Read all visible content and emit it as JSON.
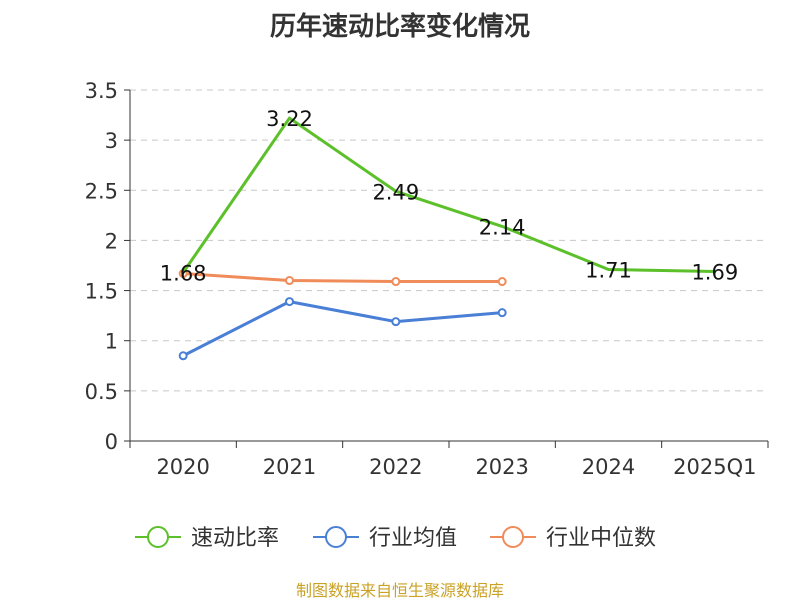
{
  "chart_data": {
    "type": "line",
    "title": "历年速动比率变化情况",
    "categories": [
      "2020",
      "2021",
      "2022",
      "2023",
      "2024",
      "2025Q1"
    ],
    "ylim": [
      0,
      3.5
    ],
    "yticks": [
      "0",
      "0.5",
      "1",
      "1.5",
      "2",
      "2.5",
      "3",
      "3.5"
    ],
    "grid": true,
    "legend_position": "bottom",
    "series": [
      {
        "name": "速动比率",
        "color": "#5cc02a",
        "values": [
          1.68,
          3.22,
          2.49,
          2.14,
          1.71,
          1.69
        ],
        "labels": [
          "1.68",
          "3.22",
          "2.49",
          "2.14",
          "1.71",
          "1.69"
        ]
      },
      {
        "name": "行业均值",
        "color": "#4a7fd6",
        "values": [
          0.85,
          1.39,
          1.19,
          1.28,
          null,
          null
        ]
      },
      {
        "name": "行业中位数",
        "color": "#f08b5a",
        "values": [
          1.67,
          1.6,
          1.59,
          1.59,
          null,
          null
        ]
      }
    ]
  },
  "footer": {
    "source": "制图数据来自恒生聚源数据库"
  }
}
